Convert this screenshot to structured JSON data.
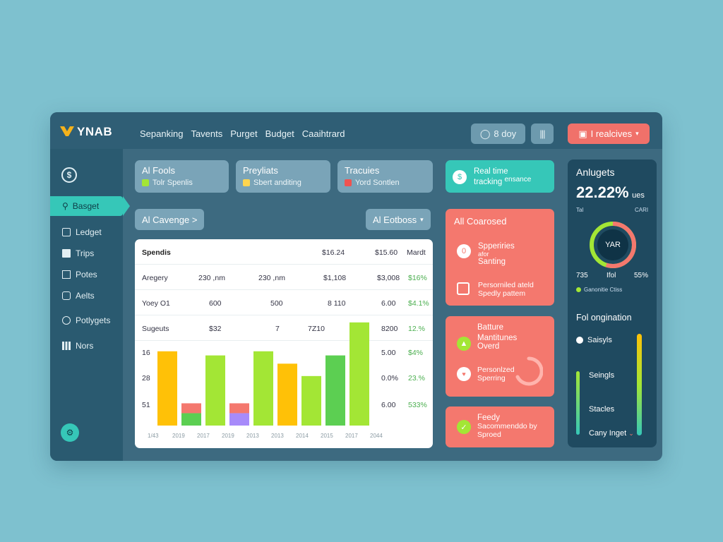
{
  "brand": {
    "name": "YNAB"
  },
  "nav": [
    "Sepanking",
    "Tavents",
    "Purget",
    "Budget",
    "Caaihtrard"
  ],
  "topbar": {
    "day_label": "8 doy",
    "realcives_label": "I realcives"
  },
  "sidebar": {
    "active": "Basget",
    "items": [
      "Ledget",
      "Trips",
      "Potes",
      "Aelts",
      "Potlygets",
      "Nors"
    ]
  },
  "summary_cards": [
    {
      "title": "Al Fools",
      "sub": "Tolr Spenlis"
    },
    {
      "title": "Preyliats",
      "sub": "Sbert anditing"
    },
    {
      "title": "Tracuies",
      "sub": "Yord Sontlen"
    }
  ],
  "chips": {
    "left": "Al Cavenge >",
    "right": "Al Eotboss"
  },
  "table": {
    "header": [
      "Spendis",
      "$16.24",
      "$15.60",
      "Mardt"
    ],
    "rows": [
      [
        "Aregery",
        "230 ,nm",
        "230 ,nm",
        "$1,108",
        "$3,008",
        "$16%"
      ],
      [
        "Yoey O1",
        "600",
        "500",
        "8 110",
        "6.00",
        "$4.1%"
      ],
      [
        "Sugeuts",
        "$32",
        "7",
        "7Z10",
        "8200",
        "12.%"
      ],
      [
        "16",
        "",
        "",
        "",
        "5.00",
        "$4%"
      ],
      [
        "28",
        "",
        "",
        "",
        "0.0%",
        "23.%"
      ],
      [
        "51",
        "",
        "",
        "",
        "6.00",
        "533%"
      ]
    ]
  },
  "chart_data": {
    "type": "bar",
    "categories": [
      "1/43",
      "2019",
      "2017",
      "2019",
      "2013",
      "2013",
      "2014",
      "2015",
      "2017",
      "2044"
    ],
    "series": [
      {
        "values": [
          18,
          3,
          17,
          3,
          18,
          15,
          12,
          17,
          25,
          0
        ]
      }
    ],
    "colors": [
      "#ffc107",
      "#5ccf52",
      "#a3e635",
      "#a78bfa",
      "#a3e635",
      "#ffc107",
      "#a3e635",
      "#5ccf52",
      "#a3e635",
      "#a3e635"
    ],
    "ylim": [
      0,
      26
    ]
  },
  "teal_card": {
    "line1": "Real time",
    "line2": "tracking",
    "line3": "ensance"
  },
  "coral_cards": {
    "a_title": "All Coarosed",
    "a_item1_l1": "Spperiries",
    "a_item1_l2": "afor",
    "a_item1_l3": "Santing",
    "a_item2_l1": "Persorniled ateld",
    "a_item2_l2": "Spedly pattem",
    "b_l1": "Batture",
    "b_l2": "Mantitunes",
    "b_l3": "Overd",
    "b_l4": "Personlzed",
    "b_l5": "Sperring",
    "c_l1": "Feedy",
    "c_l2": "Sacommenddo by",
    "c_l3": "Sproed"
  },
  "right_panel": {
    "title": "Anlugets",
    "percent": "22.22%",
    "percent_unit": "ues",
    "tags": [
      "Tal",
      "CARI"
    ],
    "donut_label": "YAR",
    "donut_stats": [
      "735",
      "Ifol",
      "55%"
    ],
    "donut_values": [
      0.55
    ],
    "legend": "Ganonitie Ctiss",
    "section": "Fol ongination",
    "items": [
      "Saisyls",
      "Seingls",
      "Stacles",
      "Cany Inget"
    ]
  },
  "colors": {
    "teal": "#36c7b8",
    "coral": "#f4786e",
    "panel": "#1f4a60"
  }
}
